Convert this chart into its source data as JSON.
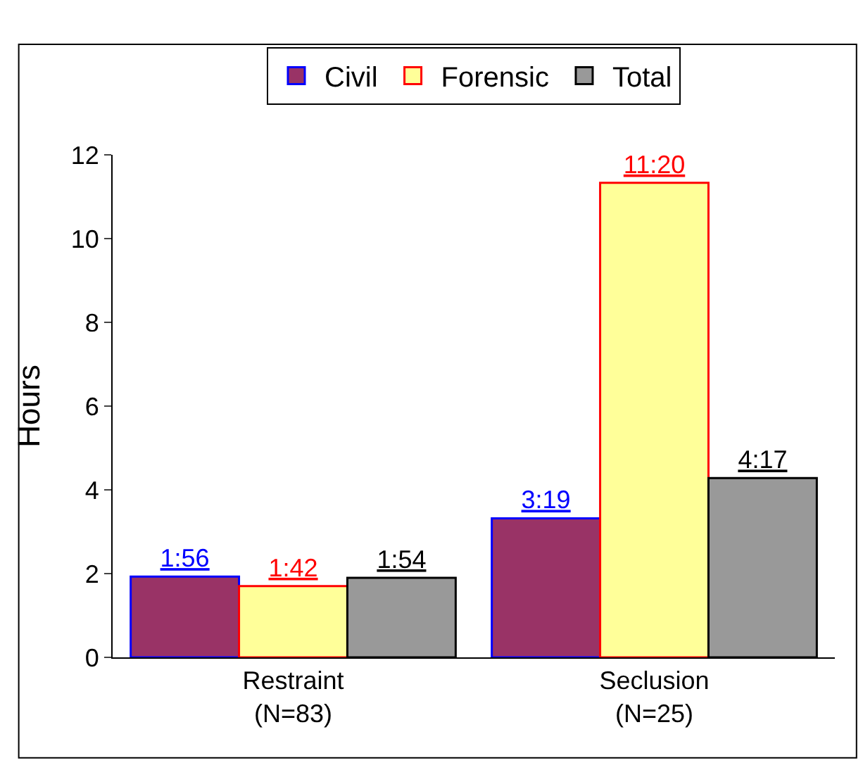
{
  "chart_data": {
    "type": "bar",
    "ylabel": "Hours",
    "categories": [
      "Restraint\n(N=83)",
      "Seclusion\n(N=25)"
    ],
    "series": [
      {
        "name": "Civil",
        "color": "#993366",
        "values": [
          1.93,
          3.32
        ],
        "value_labels": [
          "1:56",
          "3:19"
        ]
      },
      {
        "name": "Forensic",
        "color": "#ffff99",
        "values": [
          1.7,
          11.33
        ],
        "value_labels": [
          "1:42",
          "11:20"
        ]
      },
      {
        "name": "Total",
        "color": "#999999",
        "values": [
          1.9,
          4.28
        ],
        "value_labels": [
          "1:54",
          "4:17"
        ]
      }
    ],
    "ylim": [
      0,
      12
    ],
    "yticks": [
      0,
      2,
      4,
      6,
      8,
      10,
      12
    ],
    "legend": "top"
  }
}
